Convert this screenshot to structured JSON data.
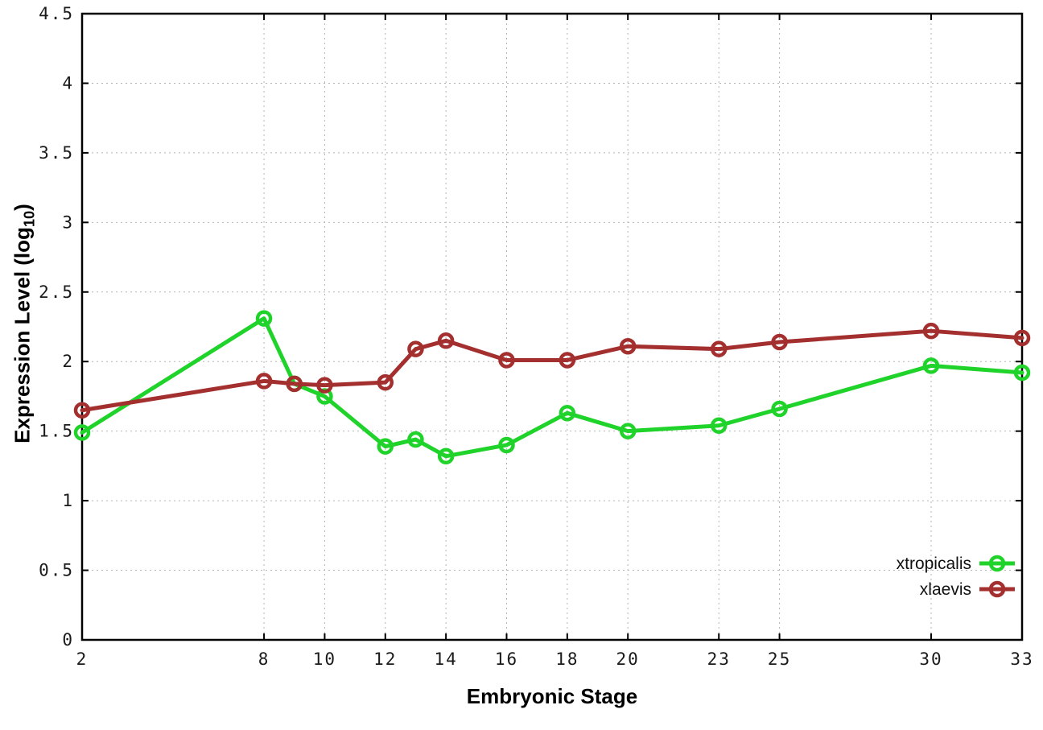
{
  "figure": {
    "background": "#ffffff",
    "border_color": "#000000",
    "grid_color": "#b5b5b5",
    "tick_label_color": "#1a1a1a"
  },
  "chart_data": {
    "type": "line",
    "title": "",
    "xlabel": "Embryonic Stage",
    "ylabel": "Expression Level (log10)",
    "ylabel_rich": {
      "pre": "Expression Level (log",
      "sub": "10",
      "post": ")"
    },
    "xlim": [
      2,
      33
    ],
    "ylim": [
      0,
      4.5
    ],
    "grid": true,
    "legend_position": "bottom-right",
    "x": [
      2,
      8,
      9,
      10,
      12,
      13,
      14,
      16,
      18,
      20,
      23,
      25,
      30,
      33
    ],
    "series": [
      {
        "name": "xtropicalis",
        "color": "#1fd32a",
        "values": [
          1.49,
          2.31,
          1.84,
          1.75,
          1.39,
          1.44,
          1.32,
          1.4,
          1.63,
          1.5,
          1.54,
          1.66,
          1.97,
          1.92
        ]
      },
      {
        "name": "xlaevis",
        "color": "#a42f2f",
        "values": [
          1.65,
          1.86,
          1.84,
          1.83,
          1.85,
          2.09,
          2.15,
          2.01,
          2.01,
          2.11,
          2.09,
          2.14,
          2.22,
          2.17
        ]
      }
    ],
    "xticks": [
      2,
      8,
      10,
      12,
      14,
      16,
      18,
      20,
      23,
      25,
      30,
      33
    ],
    "xtick_labels": [
      "2",
      "8",
      "10",
      "12",
      "14",
      "16",
      "18",
      "20",
      "23",
      "25",
      "30",
      "33"
    ],
    "yticks": [
      0,
      0.5,
      1,
      1.5,
      2,
      2.5,
      3,
      3.5,
      4,
      4.5
    ],
    "ytick_labels": [
      "0",
      "0.5",
      "1",
      "1.5",
      "2",
      "2.5",
      "3",
      "3.5",
      "4",
      "4.5"
    ]
  }
}
